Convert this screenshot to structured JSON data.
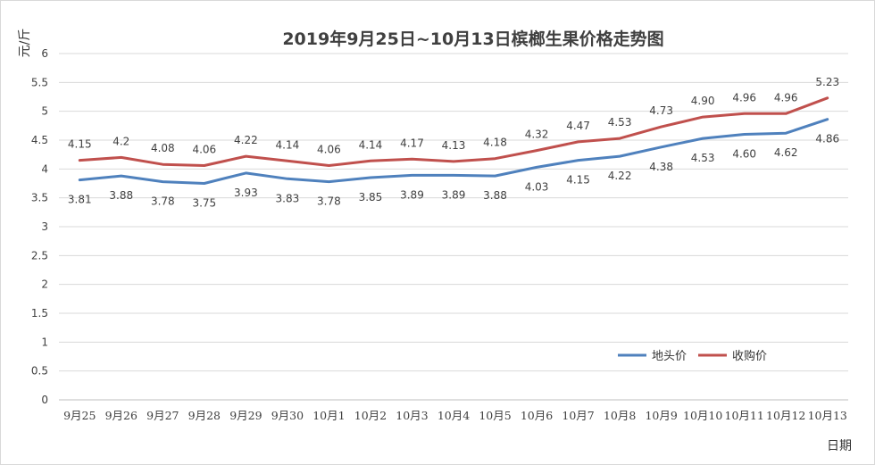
{
  "chart_data": {
    "type": "line",
    "title": "2019年9月25日~10月13日槟榔生果价格走势图",
    "xlabel": "日期",
    "ylabel": "元/斤",
    "ylim": [
      0,
      6
    ],
    "yticks": [
      "0",
      "0.5",
      "1",
      "1.5",
      "2",
      "2.5",
      "3",
      "3.5",
      "4",
      "4.5",
      "5",
      "5.5",
      "6"
    ],
    "grid": true,
    "legend_position": "bottom-right",
    "categories": [
      "9月25",
      "9月26",
      "9月27",
      "9月28",
      "9月29",
      "9月30",
      "10月1",
      "10月2",
      "10月3",
      "10月4",
      "10月5",
      "10月6",
      "10月7",
      "10月8",
      "10月9",
      "10月10",
      "10月11",
      "10月12",
      "10月13"
    ],
    "series": [
      {
        "name": "地头价",
        "color": "#4f81bd",
        "values": [
          3.81,
          3.88,
          3.78,
          3.75,
          3.93,
          3.83,
          3.78,
          3.85,
          3.89,
          3.89,
          3.88,
          4.03,
          4.15,
          4.22,
          4.38,
          4.53,
          4.6,
          4.62,
          4.86
        ],
        "labels": [
          "3.81",
          "3.88",
          "3.78",
          "3.75",
          "3.93",
          "3.83",
          "3.78",
          "3.85",
          "3.89",
          "3.89",
          "3.88",
          "4.03",
          "4.15",
          "4.22",
          "4.38",
          "4.53",
          "4.60",
          "4.62",
          "4.86"
        ]
      },
      {
        "name": "收购价",
        "color": "#c0504d",
        "values": [
          4.15,
          4.2,
          4.08,
          4.06,
          4.22,
          4.14,
          4.06,
          4.14,
          4.17,
          4.13,
          4.18,
          4.32,
          4.47,
          4.53,
          4.73,
          4.9,
          4.96,
          4.96,
          5.23
        ],
        "labels": [
          "4.15",
          "4.2",
          "4.08",
          "4.06",
          "4.22",
          "4.14",
          "4.06",
          "4.14",
          "4.17",
          "4.13",
          "4.18",
          "4.32",
          "4.47",
          "4.53",
          "4.73",
          "4.90",
          "4.96",
          "4.96",
          "5.23"
        ]
      }
    ]
  }
}
